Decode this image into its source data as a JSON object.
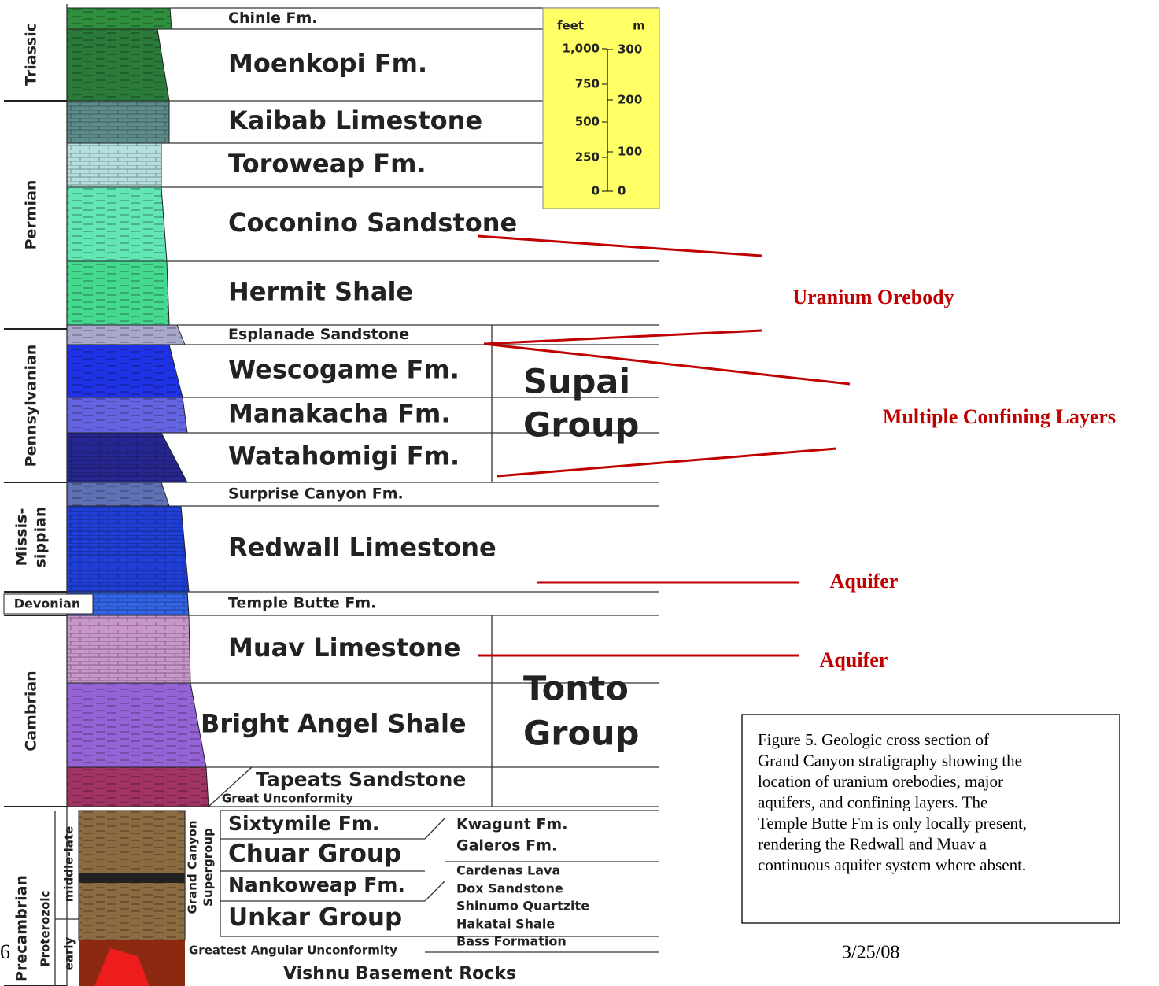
{
  "periods": [
    {
      "lines": [
        "Triassic"
      ]
    },
    {
      "lines": [
        "Permian"
      ]
    },
    {
      "lines": [
        "Pennsylvanian"
      ]
    },
    {
      "lines": [
        "Missis-",
        "sippian"
      ]
    },
    {
      "lines": [
        "Devonian"
      ]
    },
    {
      "lines": [
        "Cambrian"
      ]
    },
    {
      "lines": [
        "Precambrian"
      ]
    }
  ],
  "formations": [
    "Chinle Fm.",
    "Moenkopi Fm.",
    "Kaibab Limestone",
    "Toroweap Fm.",
    "Coconino Sandstone",
    "Hermit Shale",
    "Esplanade Sandstone",
    "Wescogame Fm.",
    "Manakacha Fm.",
    "Watahomigi Fm.",
    "Surprise Canyon Fm.",
    "Redwall Limestone",
    "Temple Butte Fm.",
    "Muav Limestone",
    "Bright Angel Shale",
    "Tapeats Sandstone"
  ],
  "groups": [
    {
      "lines": [
        "Supai",
        "Group"
      ]
    },
    {
      "lines": [
        "Tonto",
        "Group"
      ]
    }
  ],
  "scale": {
    "feet_header": "feet",
    "m_header": "m",
    "feet_ticks": [
      "1,000",
      "750",
      "500",
      "250",
      "0"
    ],
    "m_ticks": [
      "300",
      "200",
      "100",
      "0"
    ]
  },
  "precambrian": {
    "era": "Proterozoic",
    "subdivisions": [
      "middle-late",
      "early"
    ],
    "supergroup": [
      "Grand Canyon",
      "Supergroup"
    ],
    "units": [
      "Sixtymile Fm.",
      "Chuar Group",
      "Nankoweap Fm.",
      "Unkar Group"
    ],
    "subunits": [
      "Kwagunt Fm.",
      "Galeros Fm.",
      "Cardenas Lava",
      "Dox Sandstone",
      "Shinumo Quartzite",
      "Hakatai Shale",
      "Bass Formation"
    ],
    "great_unconformity": "Great Unconformity",
    "angular_unconformity": "Greatest Angular Unconformity",
    "basement": "Vishnu Basement Rocks"
  },
  "annotations": [
    "Uranium Orebody",
    "Multiple Confining Layers",
    "Aquifer",
    "Aquifer"
  ],
  "caption": [
    "Figure 5.  Geologic cross section of",
    "Grand Canyon stratigraphy showing the",
    "location of uranium orebodies, major",
    "aquifers, and confining layers.  The",
    "Temple Butte Fm is only locally present,",
    "rendering the Redwall and Muav a",
    "continuous aquifer system where absent."
  ],
  "footer": {
    "page": "6",
    "date": "3/25/08"
  }
}
